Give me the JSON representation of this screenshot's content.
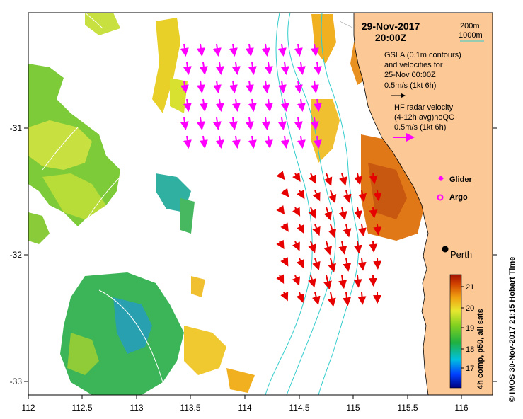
{
  "title": {
    "date": "29-Nov-2017",
    "time": "20:00Z"
  },
  "legend": {
    "isobath_1": "200m",
    "isobath_2": "1000m",
    "isobath_color": "#33cccc",
    "gsla_line1": "GSLA (0.1m contours)",
    "gsla_line2": "and velocities for",
    "gsla_line3": "25-Nov 00:00Z",
    "gsla_scale": "0.5m/s (1kt 6h)",
    "hf_line1": "HF radar velocity",
    "hf_line2": "(4-12h avg)noQC",
    "hf_scale": "0.5m/s (1kt 6h)",
    "glider_label": "Glider",
    "argo_label": "Argo",
    "marker_color": "#ff00ff"
  },
  "city": {
    "name": "Perth"
  },
  "colorbar": {
    "label": "4h comp, p50, all sats",
    "ticks": [
      "21",
      "20",
      "19",
      "18",
      "17"
    ]
  },
  "credit": "© IMOS 30-Nov-2017 21:15 Hobart Time",
  "axes": {
    "x_ticks": [
      "112",
      "112.5",
      "113",
      "113.5",
      "114",
      "114.5",
      "115",
      "115.5",
      "116"
    ],
    "y_ticks": [
      "-31",
      "-32",
      "-33"
    ]
  },
  "colors": {
    "land": "#fcc896",
    "hf_arrows": "#e60000",
    "gsla_arrows": "#ff00ff",
    "frame": "#000000"
  }
}
